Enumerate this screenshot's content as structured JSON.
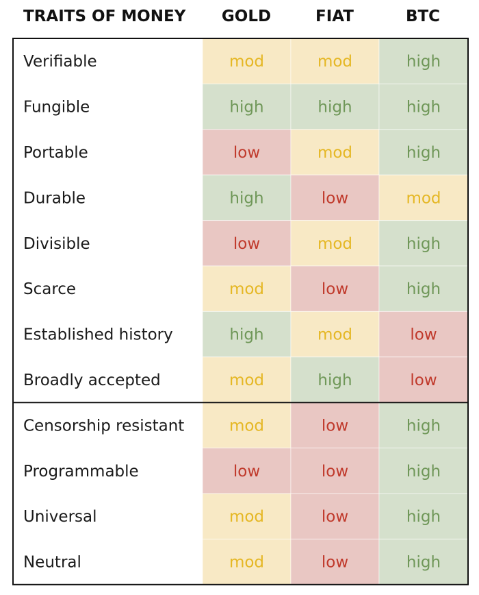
{
  "chart_data": {
    "type": "table",
    "title": "TRAITS OF MONEY",
    "columns": [
      "GOLD",
      "FIAT",
      "BTC"
    ],
    "levels": [
      "low",
      "mod",
      "high"
    ],
    "level_colors": {
      "low": {
        "fill": "#e9c7c3",
        "text": "#c0392b"
      },
      "mod": {
        "fill": "#f8e9c5",
        "text": "#e5b724"
      },
      "high": {
        "fill": "#d5e0cc",
        "text": "#6f9758"
      }
    },
    "groups": [
      {
        "rows": [
          {
            "trait": "Verifiable",
            "values": [
              "mod",
              "mod",
              "high"
            ]
          },
          {
            "trait": "Fungible",
            "values": [
              "high",
              "high",
              "high"
            ]
          },
          {
            "trait": "Portable",
            "values": [
              "low",
              "mod",
              "high"
            ]
          },
          {
            "trait": "Durable",
            "values": [
              "high",
              "low",
              "mod"
            ]
          },
          {
            "trait": "Divisible",
            "values": [
              "low",
              "mod",
              "high"
            ]
          },
          {
            "trait": "Scarce",
            "values": [
              "mod",
              "low",
              "high"
            ]
          },
          {
            "trait": "Established history",
            "values": [
              "high",
              "mod",
              "low"
            ]
          },
          {
            "trait": "Broadly accepted",
            "values": [
              "mod",
              "high",
              "low"
            ]
          }
        ]
      },
      {
        "rows": [
          {
            "trait": "Censorship resistant",
            "values": [
              "mod",
              "low",
              "high"
            ]
          },
          {
            "trait": "Programmable",
            "values": [
              "low",
              "low",
              "high"
            ]
          },
          {
            "trait": "Universal",
            "values": [
              "mod",
              "low",
              "high"
            ]
          },
          {
            "trait": "Neutral",
            "values": [
              "mod",
              "low",
              "high"
            ]
          }
        ]
      }
    ]
  }
}
